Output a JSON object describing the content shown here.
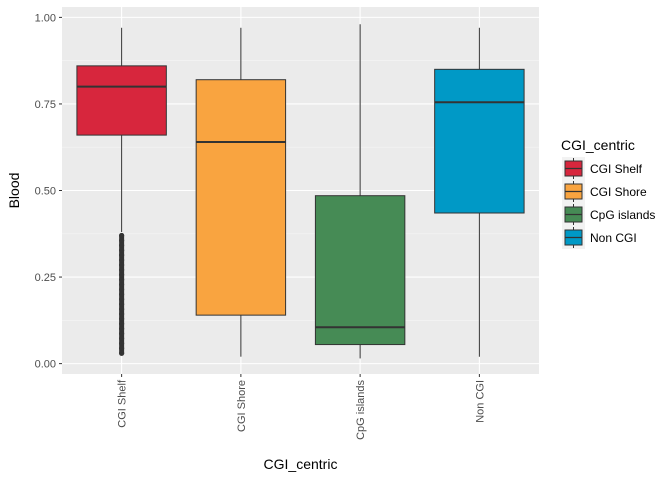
{
  "chart_data": {
    "type": "boxplot",
    "xlabel": "CGI_centric",
    "ylabel": "Blood",
    "ylim": [
      -0.03,
      1.03
    ],
    "yticks": [
      0.0,
      0.25,
      0.5,
      0.75,
      1.0
    ],
    "ytick_labels": [
      "0.00",
      "0.25",
      "0.50",
      "0.75",
      "1.00"
    ],
    "grid": true,
    "legend": {
      "title": "CGI_centric",
      "position": "right"
    },
    "categories": [
      "CGI Shelf",
      "CGI Shore",
      "CpG islands",
      "Non CGI"
    ],
    "colors": [
      "#d7263d",
      "#f9a440",
      "#468b55",
      "#0099c6"
    ],
    "boxes": [
      {
        "whisker_low": 0.38,
        "q1": 0.66,
        "median": 0.8,
        "q3": 0.86,
        "whisker_high": 0.97,
        "outliers_low": 0.03,
        "outliers_high": 0.37
      },
      {
        "whisker_low": 0.02,
        "q1": 0.14,
        "median": 0.64,
        "q3": 0.82,
        "whisker_high": 0.97
      },
      {
        "whisker_low": 0.015,
        "q1": 0.055,
        "median": 0.105,
        "q3": 0.485,
        "whisker_high": 0.98
      },
      {
        "whisker_low": 0.02,
        "q1": 0.435,
        "median": 0.755,
        "q3": 0.85,
        "whisker_high": 0.97
      }
    ]
  }
}
